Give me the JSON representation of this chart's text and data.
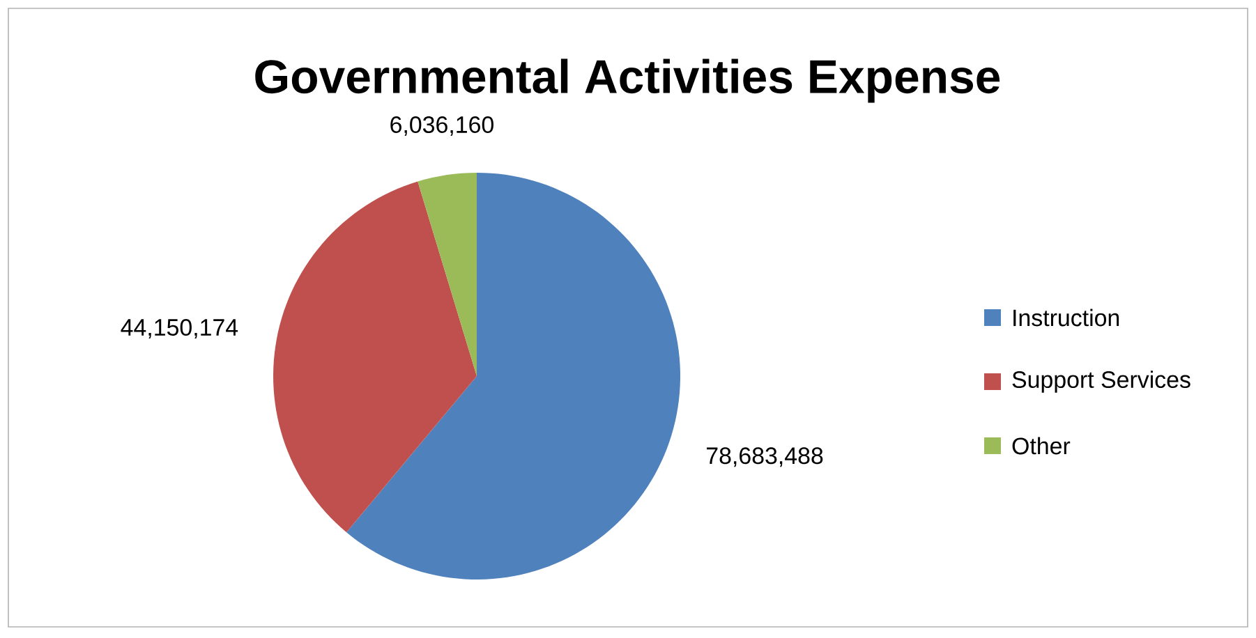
{
  "chart_data": {
    "type": "pie",
    "title": "Governmental Activities Expense",
    "categories": [
      "Instruction",
      "Support Services",
      "Other"
    ],
    "values": [
      78683488,
      44150174,
      6036160
    ],
    "colors": [
      "#4f81bd",
      "#c0504d",
      "#9bbb59"
    ],
    "value_labels": [
      "78,683,488",
      "44,150,174",
      "6,036,160"
    ],
    "legend": "right"
  }
}
